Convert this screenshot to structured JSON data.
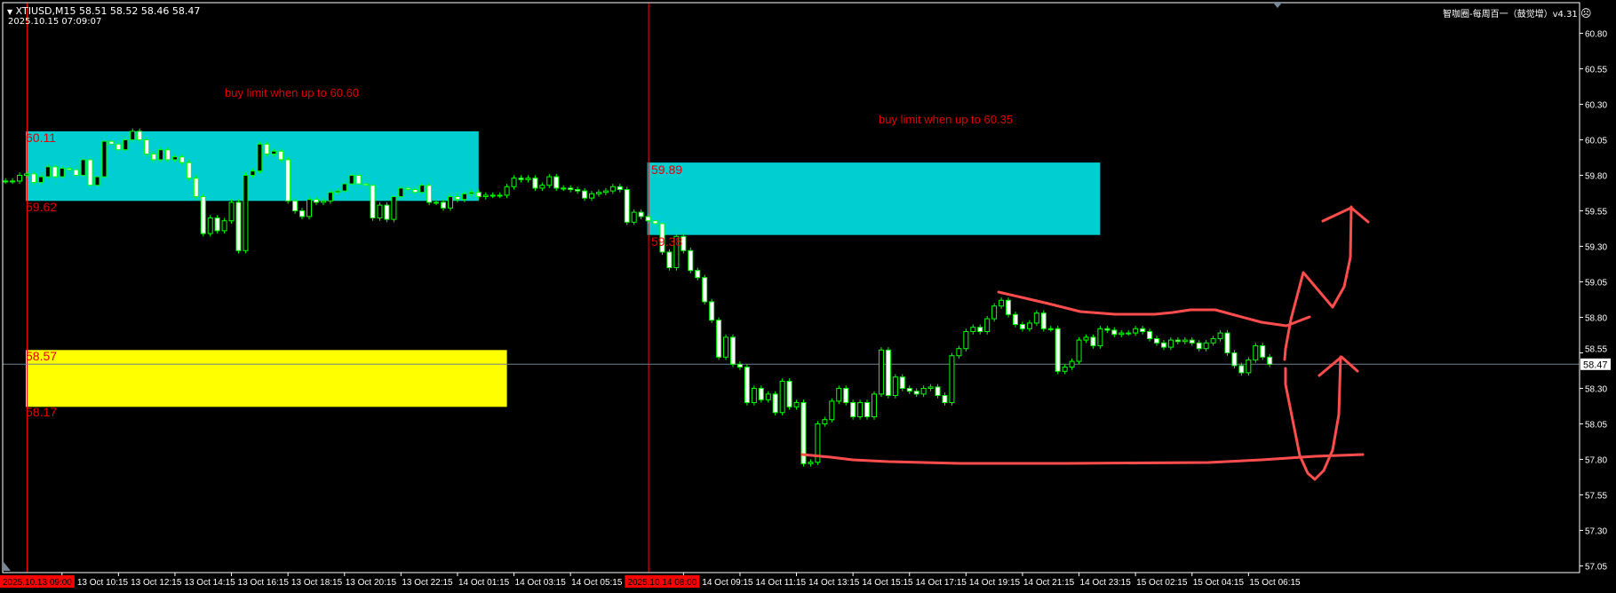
{
  "header": {
    "symbol_line": "XTIUSD,M15  58.51 58.52 58.46 58.47",
    "datetime": "2025.10.15 07:09:07",
    "indicator_title": "智咖圈-每周百一（鼓觉增）v4.31",
    "indicator_icon": "sad-face-icon"
  },
  "annotations": {
    "zone1_note": "buy limit when up to 60.60",
    "zone2_note": "buy limit when up to 60.35"
  },
  "colors": {
    "background": "#000000",
    "candle_outline": "#00ff00",
    "bull_body": "#000000",
    "bear_body": "#ffffff",
    "buy_zone": "#00ced1",
    "support_zone": "#ffff00",
    "level_text": "#e00000",
    "drawing": "#ff4d4d",
    "price_line": "#708090",
    "period_separator": "#ff0000"
  },
  "chart_data": {
    "type": "candlestick",
    "symbol": "XTIUSD",
    "timeframe": "M15",
    "first_bar_time": "13 Oct 08:15",
    "last_ohlc": {
      "open": 58.51,
      "high": 58.52,
      "low": 58.46,
      "close": 58.47
    },
    "last_price": "58.47",
    "ylim": [
      57.05,
      60.8
    ],
    "y_ticks": [
      "60.80",
      "60.55",
      "60.30",
      "60.05",
      "59.80",
      "59.55",
      "59.30",
      "59.05",
      "58.80",
      "58.55",
      "58.30",
      "58.05",
      "57.80",
      "57.55",
      "57.30",
      "57.05"
    ],
    "x_ticks": [
      "13 Oct 10:15",
      "13 Oct 12:15",
      "13 Oct 14:15",
      "13 Oct 16:15",
      "13 Oct 18:15",
      "13 Oct 20:15",
      "13 Oct 22:15",
      "14 Oct 01:15",
      "14 Oct 03:15",
      "14 Oct 05:15",
      "14 Oct 09:15",
      "14 Oct 11:15",
      "14 Oct 13:15",
      "14 Oct 15:15",
      "14 Oct 17:15",
      "14 Oct 19:15",
      "14 Oct 21:15",
      "14 Oct 23:15",
      "15 Oct 02:15",
      "15 Oct 04:15",
      "15 Oct 06:15"
    ],
    "separators": [
      {
        "label": "2025.10.13 09:00",
        "time": "13 Oct 09:00"
      },
      {
        "label": "2025.10.14 08:00",
        "time": "14 Oct 08:00"
      }
    ],
    "zones": [
      {
        "top": 60.11,
        "bottom": 59.62,
        "top_label": "60.11",
        "bottom_label": "59.62",
        "start": "13 Oct 09:00",
        "end": "14 Oct 02:00",
        "color": "#00ced1"
      },
      {
        "top": 59.89,
        "bottom": 59.38,
        "top_label": "59.89",
        "bottom_label": "59.38",
        "start": "14 Oct 08:00",
        "end": "15 Oct 01:00",
        "color": "#00ced1"
      },
      {
        "top": 58.57,
        "bottom": 58.17,
        "top_label": "58.57",
        "bottom_label": "58.17",
        "start": "13 Oct 09:00",
        "end": "14 Oct 03:00",
        "color": "#ffff00"
      }
    ],
    "closes": [
      59.76,
      59.76,
      59.8,
      59.81,
      59.75,
      59.79,
      59.86,
      59.79,
      59.85,
      59.84,
      59.8,
      59.91,
      59.73,
      59.79,
      60.04,
      60.02,
      59.98,
      60.05,
      60.11,
      60.05,
      59.95,
      59.91,
      59.98,
      59.91,
      59.93,
      59.89,
      59.78,
      59.65,
      59.39,
      59.5,
      59.41,
      59.48,
      59.61,
      59.27,
      59.8,
      59.83,
      60.02,
      59.95,
      59.97,
      59.91,
      59.62,
      59.55,
      59.51,
      59.63,
      59.61,
      59.62,
      59.68,
      59.69,
      59.74,
      59.8,
      59.74,
      59.73,
      59.5,
      59.59,
      59.49,
      59.65,
      59.71,
      59.7,
      59.68,
      59.73,
      59.61,
      59.61,
      59.57,
      59.65,
      59.63,
      59.67,
      59.68,
      59.65,
      59.66,
      59.66,
      59.66,
      59.72,
      59.78,
      59.77,
      59.78,
      59.71,
      59.73,
      59.79,
      59.71,
      59.71,
      59.7,
      59.69,
      59.64,
      59.67,
      59.68,
      59.69,
      59.72,
      59.7,
      59.47,
      59.54,
      59.51,
      59.48,
      59.46,
      59.26,
      59.15,
      59.37,
      59.27,
      59.13,
      59.08,
      58.91,
      58.78,
      58.52,
      58.66,
      58.47,
      58.45,
      58.2,
      58.3,
      58.22,
      58.26,
      58.13,
      58.35,
      58.17,
      58.2,
      57.77,
      57.78,
      58.05,
      58.08,
      58.21,
      58.3,
      58.2,
      58.1,
      58.2,
      58.1,
      58.26,
      58.57,
      58.25,
      58.38,
      58.3,
      58.28,
      58.26,
      58.3,
      58.31,
      58.25,
      58.2,
      58.53,
      58.58,
      58.7,
      58.73,
      58.7,
      58.79,
      58.88,
      58.92,
      58.82,
      58.75,
      58.72,
      58.76,
      58.83,
      58.72,
      58.72,
      58.42,
      58.45,
      58.49,
      58.64,
      58.66,
      58.6,
      58.72,
      58.71,
      58.68,
      58.69,
      58.69,
      58.72,
      58.7,
      58.65,
      58.62,
      58.59,
      58.64,
      58.63,
      58.64,
      58.62,
      58.58,
      58.62,
      58.65,
      58.69,
      58.55,
      58.46,
      58.41,
      58.5,
      58.6,
      58.52,
      58.47
    ]
  }
}
